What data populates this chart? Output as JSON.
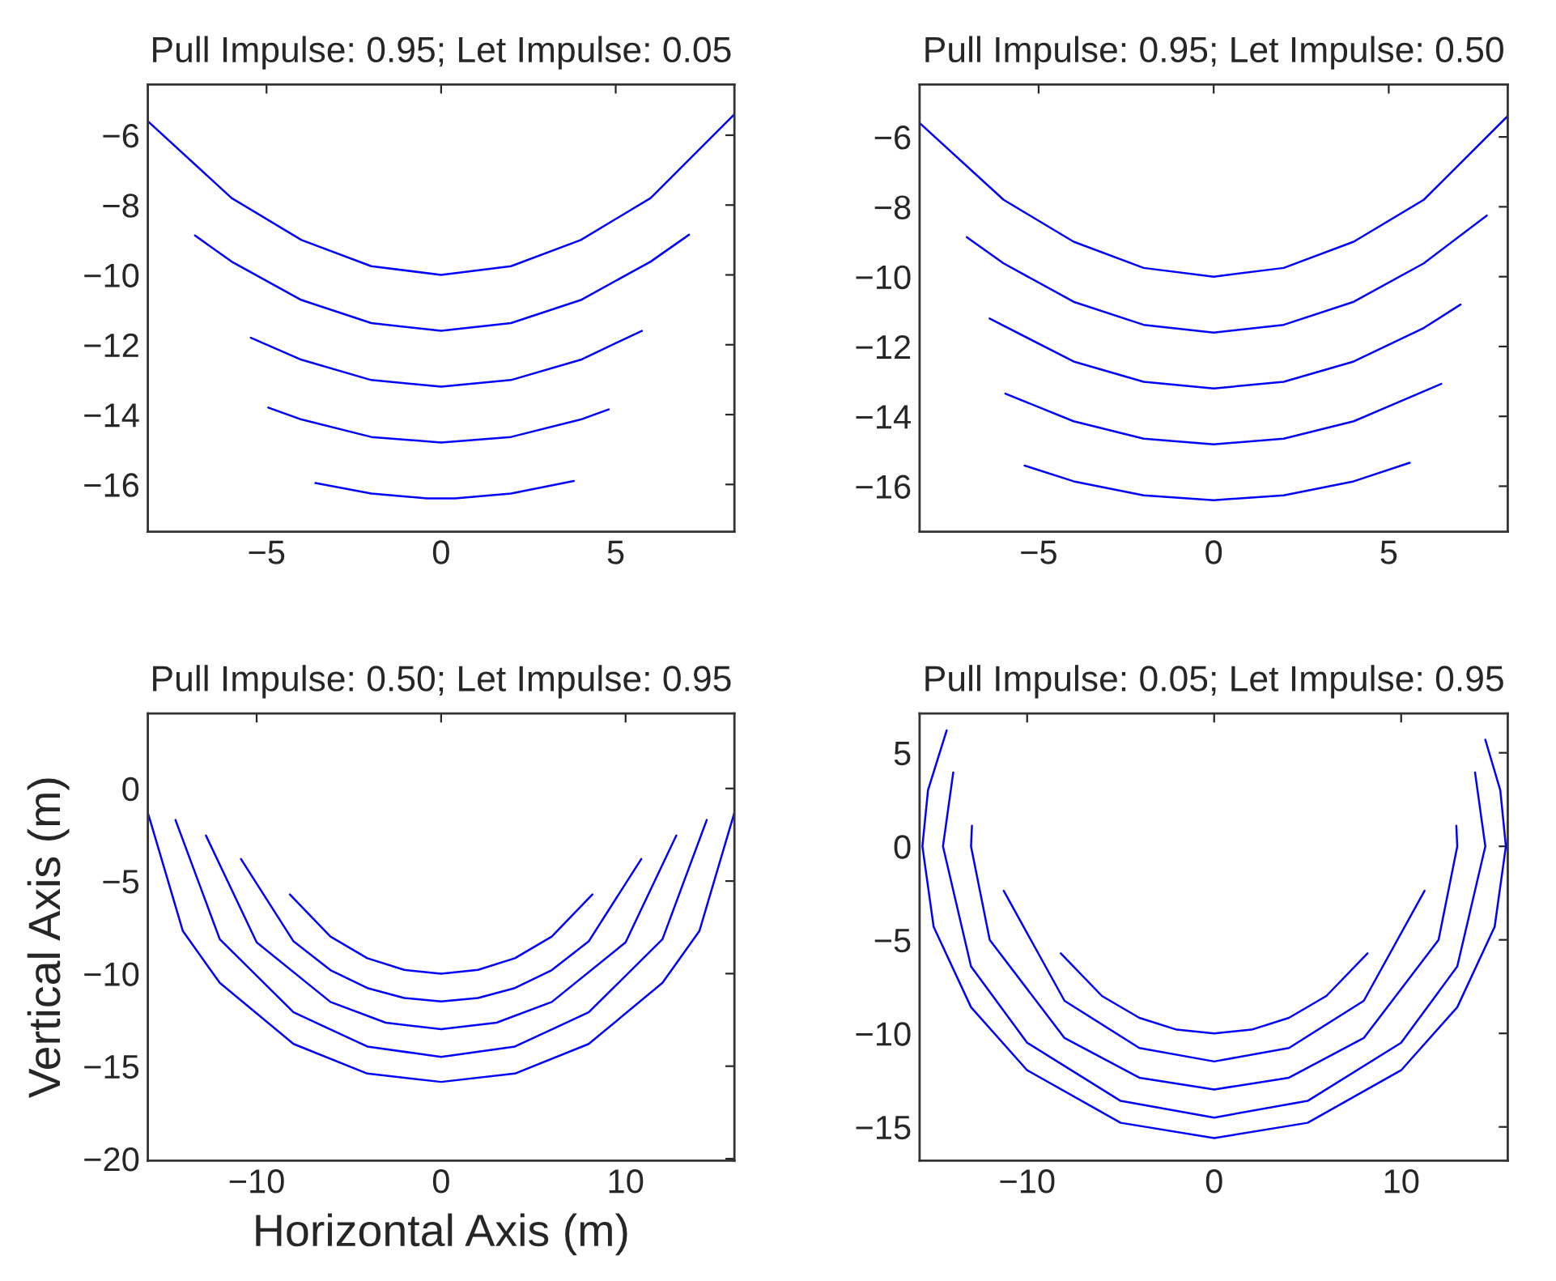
{
  "chart_data": [
    {
      "type": "line",
      "title": "Pull Impulse: 0.95; Let Impulse: 0.05",
      "xlim": [
        -8.4,
        8.4
      ],
      "ylim": [
        -17.35,
        -4.55
      ],
      "xticks": [
        -5,
        0,
        5
      ],
      "yticks": [
        -16,
        -14,
        -12,
        -10,
        -8,
        -6
      ],
      "grid": false,
      "legend": false,
      "series": [
        {
          "color": "#0000ff",
          "x": [
            -8.4,
            -6,
            -4,
            -2,
            0,
            2,
            4,
            6,
            8.4
          ],
          "values": [
            -5.6,
            -7.8,
            -9.0,
            -9.75,
            -10,
            -9.75,
            -9.0,
            -7.8,
            -5.4
          ]
        },
        {
          "color": "#0000ff",
          "x": [
            -7.05,
            -6,
            -4,
            -2,
            0,
            2,
            4,
            6,
            7.1
          ],
          "values": [
            -8.87,
            -9.62,
            -10.72,
            -11.38,
            -11.6,
            -11.38,
            -10.72,
            -9.62,
            -8.85
          ]
        },
        {
          "color": "#0000ff",
          "x": [
            -5.45,
            -4,
            -2,
            0,
            2,
            4,
            5.75
          ],
          "values": [
            -11.8,
            -12.43,
            -13.01,
            -13.2,
            -13.01,
            -12.43,
            -11.6
          ]
        },
        {
          "color": "#0000ff",
          "x": [
            -4.95,
            -4,
            -2,
            0,
            2,
            4,
            4.8
          ],
          "values": [
            -13.8,
            -14.14,
            -14.64,
            -14.8,
            -14.64,
            -14.14,
            -13.85
          ]
        },
        {
          "color": "#0000ff",
          "x": [
            -3.6,
            -2,
            -0.4,
            0.4,
            2,
            3.8
          ],
          "values": [
            -15.96,
            -16.26,
            -16.4,
            -16.4,
            -16.26,
            -15.9
          ]
        }
      ]
    },
    {
      "type": "line",
      "title": "Pull Impulse: 0.95; Let Impulse: 0.50",
      "xlim": [
        -8.4,
        8.4
      ],
      "ylim": [
        -17.3,
        -4.5
      ],
      "xticks": [
        -5,
        0,
        5
      ],
      "yticks": [
        -16,
        -14,
        -12,
        -10,
        -8,
        -6
      ],
      "grid": false,
      "legend": false,
      "series": [
        {
          "color": "#0000ff",
          "x": [
            -8.4,
            -6,
            -4,
            -2,
            0,
            2,
            4,
            6,
            8.4
          ],
          "values": [
            -5.6,
            -7.8,
            -9.0,
            -9.75,
            -10,
            -9.75,
            -9.0,
            -7.8,
            -5.4
          ]
        },
        {
          "color": "#0000ff",
          "x": [
            -7.05,
            -6,
            -4,
            -2,
            0,
            2,
            4,
            6,
            7.8
          ],
          "values": [
            -8.87,
            -9.62,
            -10.72,
            -11.38,
            -11.6,
            -11.38,
            -10.72,
            -9.62,
            -8.25
          ]
        },
        {
          "color": "#0000ff",
          "x": [
            -6.4,
            -4,
            -2,
            0,
            2,
            4,
            6,
            7.05
          ],
          "values": [
            -11.2,
            -12.43,
            -13.01,
            -13.2,
            -13.01,
            -12.43,
            -11.47,
            -10.8
          ]
        },
        {
          "color": "#0000ff",
          "x": [
            -5.95,
            -4,
            -2,
            0,
            2,
            4,
            6.5
          ],
          "values": [
            -13.35,
            -14.14,
            -14.64,
            -14.8,
            -14.64,
            -14.14,
            -13.07
          ]
        },
        {
          "color": "#0000ff",
          "x": [
            -5.4,
            -4,
            -2,
            0,
            2,
            4,
            5.6
          ],
          "values": [
            -15.41,
            -15.86,
            -16.26,
            -16.4,
            -16.26,
            -15.86,
            -15.33
          ]
        }
      ]
    },
    {
      "type": "line",
      "title": "Pull Impulse: 0.50; Let Impulse: 0.95",
      "xlabel": "Horizontal Axis (m)",
      "ylabel": "Vertical Axis (m)",
      "xlim": [
        -15.9,
        15.9
      ],
      "ylim": [
        -20.1,
        4.05
      ],
      "xticks": [
        -10,
        0,
        10
      ],
      "yticks": [
        -20,
        -15,
        -10,
        -5,
        0
      ],
      "grid": false,
      "legend": false,
      "series": [
        {
          "color": "#0000ff",
          "x": [
            -8.2,
            -6,
            -4,
            -2,
            0,
            2,
            4,
            6,
            8.2
          ],
          "values": [
            -5.72,
            -8.0,
            -9.17,
            -9.8,
            -10,
            -9.8,
            -9.17,
            -8.0,
            -5.72
          ]
        },
        {
          "color": "#0000ff",
          "x": [
            -10.85,
            -8,
            -6,
            -4,
            -2,
            0,
            2,
            4,
            6,
            8,
            10.85
          ],
          "values": [
            -3.81,
            -8.26,
            -9.81,
            -10.78,
            -11.32,
            -11.5,
            -11.32,
            -10.78,
            -9.81,
            -8.26,
            -3.81
          ]
        },
        {
          "color": "#0000ff",
          "x": [
            -12.75,
            -10,
            -6,
            -3,
            0,
            3,
            6,
            10,
            12.75
          ],
          "values": [
            -2.54,
            -8.31,
            -11.53,
            -12.65,
            -13,
            -12.65,
            -11.53,
            -8.31,
            -2.54
          ]
        },
        {
          "color": "#0000ff",
          "x": [
            -14.4,
            -12,
            -8,
            -4,
            0,
            4,
            8,
            12,
            14.4
          ],
          "values": [
            -1.7,
            -8.14,
            -12.09,
            -13.94,
            -14.5,
            -13.94,
            -12.09,
            -8.14,
            -1.7
          ]
        },
        {
          "color": "#0000ff",
          "x": [
            -15.9,
            -14,
            -12,
            -8,
            -4,
            0,
            4,
            8,
            12,
            14,
            15.9
          ],
          "values": [
            -1.3,
            -7.7,
            -10.5,
            -13.8,
            -15.4,
            -15.85,
            -15.4,
            -13.8,
            -10.5,
            -7.7,
            -1.3
          ]
        }
      ]
    },
    {
      "type": "line",
      "title": "Pull Impulse: 0.05; Let Impulse: 0.95",
      "xlim": [
        -15.75,
        15.7
      ],
      "ylim": [
        -16.8,
        7.1
      ],
      "xticks": [
        -10,
        0,
        10
      ],
      "yticks": [
        -15,
        -10,
        -5,
        0,
        5
      ],
      "grid": false,
      "legend": false,
      "series": [
        {
          "color": "#0000ff",
          "x": [
            -8.2,
            -6,
            -4,
            -2,
            0,
            2,
            4,
            6,
            8.2
          ],
          "values": [
            -5.72,
            -8.0,
            -9.17,
            -9.8,
            -10,
            -9.8,
            -9.17,
            -8.0,
            -5.72
          ]
        },
        {
          "color": "#0000ff",
          "x": [
            -11.25,
            -8,
            -4,
            0,
            4,
            8,
            11.25
          ],
          "values": [
            -2.38,
            -8.26,
            -10.78,
            -11.5,
            -10.78,
            -8.26,
            -2.38
          ]
        },
        {
          "color": "#0000ff",
          "x": [
            -12.95,
            -13,
            -12,
            -8,
            -4,
            0,
            4,
            8,
            12,
            13,
            12.95
          ],
          "values": [
            1.1,
            0,
            -5.0,
            -10.25,
            -12.37,
            -13,
            -12.37,
            -10.25,
            -5.0,
            0,
            1.1
          ]
        },
        {
          "color": "#0000ff",
          "x": [
            -13.95,
            -14.5,
            -13,
            -10,
            -5,
            0,
            5,
            10,
            13,
            14.5,
            13.95
          ],
          "values": [
            3.95,
            0,
            -6.42,
            -10.5,
            -13.61,
            -14.5,
            -13.61,
            -10.5,
            -6.42,
            0,
            3.95
          ]
        },
        {
          "color": "#0000ff",
          "x": [
            -14.3,
            -15.3,
            -15.6,
            -15,
            -13,
            -10,
            -5,
            0,
            5,
            10,
            13,
            15,
            15.6,
            15.3,
            14.5
          ],
          "values": [
            6.2,
            3,
            0,
            -4.3,
            -8.6,
            -11.97,
            -14.78,
            -15.6,
            -14.78,
            -11.97,
            -8.6,
            -4.3,
            0,
            3,
            5.7
          ]
        }
      ]
    }
  ]
}
